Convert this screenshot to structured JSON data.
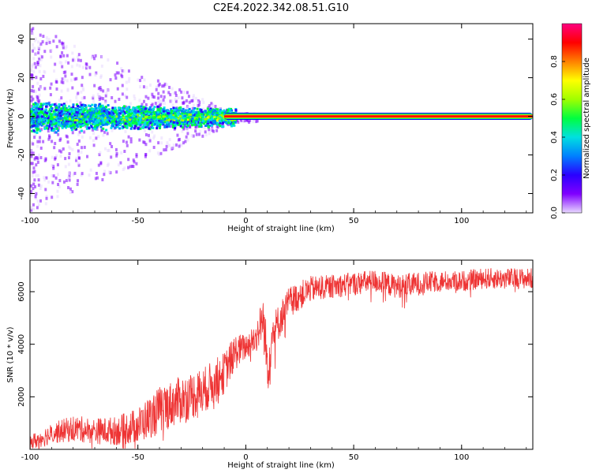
{
  "title": "C2E4.2022.342.08.51.G10",
  "chart_data": [
    {
      "type": "heatmap",
      "xlabel": "Height of straight line (km)",
      "ylabel": "Frequency (Hz)",
      "xlim": [
        -100,
        133
      ],
      "ylim": [
        -50,
        48
      ],
      "xticks": [
        -100,
        -50,
        0,
        50,
        100
      ],
      "yticks": [
        -40,
        -20,
        0,
        20,
        40
      ],
      "colorbar": {
        "label": "Normalized spectral amplitude",
        "range": [
          0,
          1
        ],
        "ticks": [
          "0.0",
          "0.2",
          "0.4",
          "0.6",
          "0.8"
        ],
        "tick_values": [
          0,
          0.2,
          0.4,
          0.6,
          0.8
        ],
        "colormap": [
          "#e8d8ff",
          "#8000ff",
          "#2a00ff",
          "#0080ff",
          "#00e0e0",
          "#00ff40",
          "#a0ff00",
          "#ffff00",
          "#ff8000",
          "#ff0000",
          "#ff0080"
        ]
      },
      "carrier": {
        "frequency_hz": 0,
        "x_start": -10,
        "x_end": 133,
        "amplitude": 0.95
      },
      "noise_region": {
        "x_start": -100,
        "x_end": -10,
        "center_hz": 0,
        "halfwidth_hz": 5
      }
    },
    {
      "type": "line",
      "xlabel": "Height of straight line (km)",
      "ylabel": "SNR (10 * v/v)",
      "xlim": [
        -100,
        133
      ],
      "ylim": [
        0,
        7200
      ],
      "xticks": [
        -100,
        -50,
        0,
        50,
        100
      ],
      "yticks": [
        2000,
        4000,
        6000
      ],
      "color": "#ee3333",
      "x": [
        -100,
        -90,
        -80,
        -70,
        -60,
        -50,
        -40,
        -30,
        -20,
        -10,
        -5,
        0,
        5,
        8,
        10,
        12,
        15,
        20,
        30,
        40,
        50,
        60,
        70,
        80,
        90,
        100,
        110,
        120,
        133
      ],
      "y": [
        250,
        600,
        800,
        700,
        700,
        900,
        1500,
        1900,
        2200,
        2900,
        3700,
        3900,
        4300,
        5000,
        3200,
        4300,
        4800,
        5600,
        6100,
        6200,
        6300,
        6400,
        6200,
        6300,
        6400,
        6400,
        6500,
        6500,
        6500
      ],
      "noise_amplitude": [
        300,
        400,
        500,
        500,
        550,
        700,
        900,
        900,
        900,
        800,
        700,
        500,
        600,
        900,
        1300,
        900,
        700,
        600,
        500,
        450,
        450,
        450,
        450,
        450,
        400,
        400,
        400,
        400,
        400
      ]
    }
  ]
}
